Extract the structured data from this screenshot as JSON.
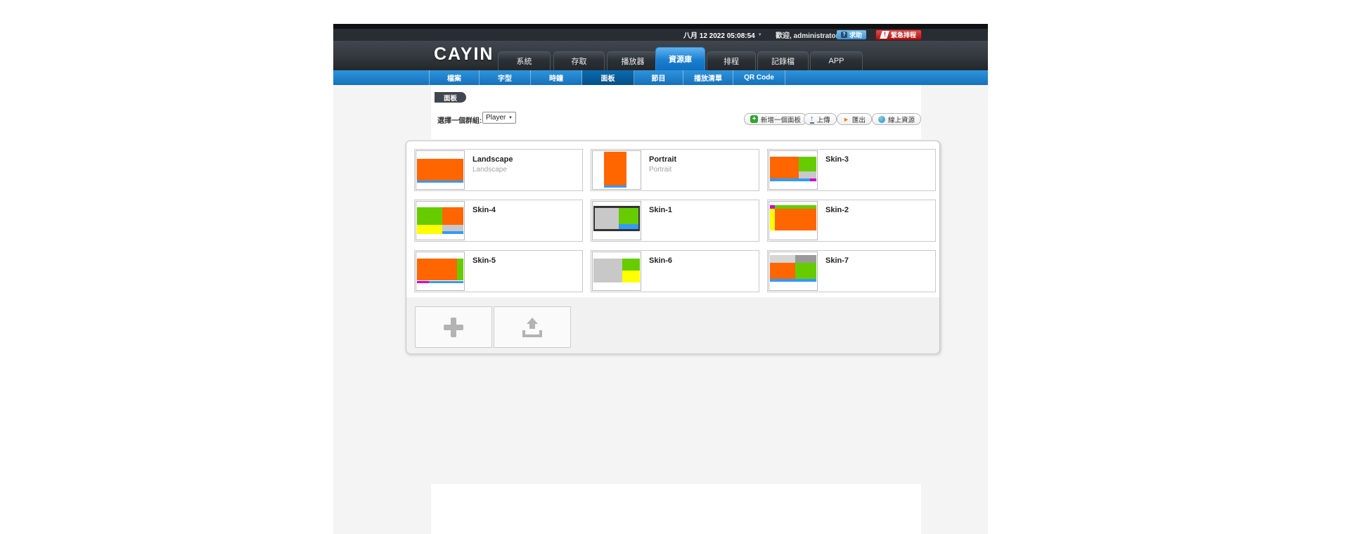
{
  "titlebar": {
    "datetime": "八月 12 2022 05:08:54",
    "welcome": "歡迎, administrator",
    "help": "求助",
    "help_icon": "?",
    "emergency": "緊急排程",
    "emergency_icon": "!"
  },
  "header": {
    "logo": "CAYIN",
    "tabs": [
      {
        "label": "系統",
        "active": false
      },
      {
        "label": "存取",
        "active": false
      },
      {
        "label": "播放器",
        "active": false
      },
      {
        "label": "資源庫",
        "active": true
      },
      {
        "label": "排程",
        "active": false
      },
      {
        "label": "記錄檔",
        "active": false
      },
      {
        "label": "APP",
        "active": false
      }
    ]
  },
  "subnav": {
    "items": [
      {
        "label": "檔案",
        "active": false
      },
      {
        "label": "字型",
        "active": false
      },
      {
        "label": "時鐘",
        "active": false
      },
      {
        "label": "面板",
        "active": true
      },
      {
        "label": "節目",
        "active": false
      },
      {
        "label": "播放清單",
        "active": false
      },
      {
        "label": "QR Code",
        "active": false
      }
    ]
  },
  "toolbar": {
    "badge": "面板",
    "group_label": "選擇一個群組:",
    "group_value": "Player",
    "buttons": [
      {
        "label": "新增一個面板",
        "icon": "add-icon"
      },
      {
        "label": "上傳",
        "icon": "upload-icon"
      },
      {
        "label": "匯出",
        "icon": "export-icon"
      },
      {
        "label": "線上資源",
        "icon": "online-resource-icon"
      }
    ]
  },
  "skins": [
    {
      "title": "Landscape",
      "subtitle": "Landscape",
      "zones": [
        [
          "orange",
          2,
          20,
          96,
          57
        ],
        [
          "blue",
          2,
          77,
          96,
          6
        ]
      ]
    },
    {
      "title": "Portrait",
      "subtitle": "Portrait",
      "zones": [
        [
          "orange",
          24,
          2,
          46,
          88
        ],
        [
          "blue",
          24,
          90,
          46,
          7
        ]
      ]
    },
    {
      "title": "Skin-3",
      "subtitle": "",
      "zones": [
        [
          "orange",
          2,
          15,
          60,
          57
        ],
        [
          "green",
          62,
          15,
          36,
          38
        ],
        [
          "gray",
          62,
          53,
          36,
          19
        ],
        [
          "blue",
          2,
          72,
          84,
          7
        ],
        [
          "magenta",
          86,
          72,
          12,
          7
        ]
      ]
    },
    {
      "title": "Skin-4",
      "subtitle": "",
      "zones": [
        [
          "green",
          2,
          14,
          53,
          48
        ],
        [
          "orange",
          55,
          14,
          43,
          48
        ],
        [
          "yellow",
          2,
          62,
          53,
          24
        ],
        [
          "gray",
          55,
          62,
          43,
          15
        ],
        [
          "blue",
          55,
          77,
          43,
          9
        ]
      ]
    },
    {
      "title": "Skin-1",
      "subtitle": "",
      "zones": [
        [
          "dark",
          2,
          12,
          96,
          66
        ],
        [
          "gray",
          5,
          17,
          50,
          56
        ],
        [
          "green",
          55,
          17,
          40,
          42
        ],
        [
          "blue",
          55,
          59,
          40,
          14
        ]
      ]
    },
    {
      "title": "Skin-2",
      "subtitle": "",
      "zones": [
        [
          "magenta",
          2,
          10,
          10,
          9
        ],
        [
          "green",
          12,
          10,
          86,
          9
        ],
        [
          "yellow",
          2,
          19,
          10,
          57
        ],
        [
          "orange",
          12,
          19,
          86,
          57
        ]
      ]
    },
    {
      "title": "Skin-5",
      "subtitle": "",
      "zones": [
        [
          "orange",
          2,
          16,
          84,
          59
        ],
        [
          "green",
          86,
          16,
          12,
          59
        ],
        [
          "magenta",
          2,
          75,
          24,
          7
        ],
        [
          "blue",
          26,
          75,
          72,
          7
        ]
      ]
    },
    {
      "title": "Skin-6",
      "subtitle": "",
      "zones": [
        [
          "gray",
          2,
          16,
          60,
          64
        ],
        [
          "green",
          62,
          16,
          36,
          32
        ],
        [
          "yellow",
          62,
          48,
          36,
          32
        ]
      ]
    },
    {
      "title": "Skin-7",
      "subtitle": "",
      "zones": [
        [
          "lightgray",
          2,
          8,
          53,
          19
        ],
        [
          "darkgray",
          55,
          8,
          43,
          19
        ],
        [
          "orange",
          2,
          27,
          53,
          43
        ],
        [
          "green",
          55,
          27,
          43,
          43
        ],
        [
          "blue",
          2,
          70,
          96,
          8
        ]
      ]
    }
  ],
  "colors": {
    "orange": "#ff6600",
    "green": "#66cc00",
    "blue": "#3399ff",
    "yellow": "#ffff00",
    "magenta": "#cc00cc",
    "gray": "#c8c8c8",
    "lightgray": "#d6d6d6",
    "darkgray": "#9a9a9a",
    "dark": "#333333",
    "accent_blue": "#1b7fd0",
    "badge_bg": "#40474e"
  }
}
